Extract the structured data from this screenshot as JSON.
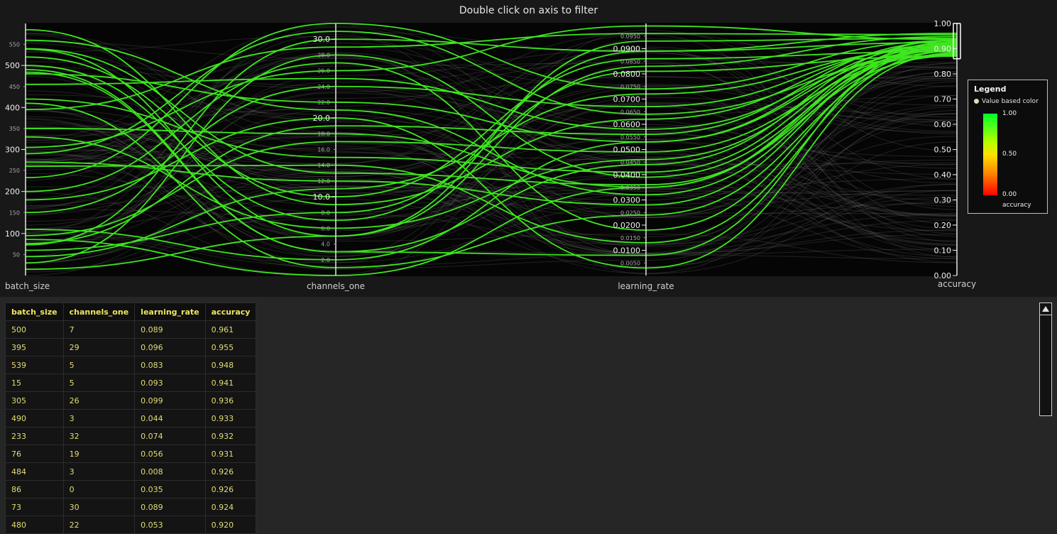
{
  "header": {
    "title": "Double click on axis to filter"
  },
  "chart_data": {
    "type": "parallel_coordinates",
    "axes": [
      {
        "name": "batch_size",
        "range": [
          0,
          600
        ],
        "major_ticks": [
          100,
          200,
          300,
          400,
          500
        ],
        "minor_ticks": [
          50,
          150,
          250,
          350,
          450,
          550
        ],
        "major_labels": [
          "100",
          "200",
          "300",
          "400",
          "500"
        ],
        "minor_labels": [
          "50",
          "150",
          "250",
          "350",
          "450",
          "550"
        ]
      },
      {
        "name": "channels_one",
        "range": [
          0,
          32
        ],
        "major_ticks": [
          10,
          20,
          30
        ],
        "minor_ticks": [
          2,
          4,
          6,
          8,
          12,
          14,
          16,
          18,
          22,
          24,
          26,
          28
        ],
        "major_labels": [
          "10.0",
          "20.0",
          "30.0"
        ],
        "minor_labels": [
          "2.0",
          "4.0",
          "6.0",
          "8.0",
          "12.0",
          "14.0",
          "16.0",
          "18.0",
          "22.0",
          "24.0",
          "26.0",
          "28.0"
        ]
      },
      {
        "name": "learning_rate",
        "range": [
          0,
          0.1
        ],
        "major_ticks": [
          0.01,
          0.02,
          0.03,
          0.04,
          0.05,
          0.06,
          0.07,
          0.08,
          0.09
        ],
        "minor_ticks": [
          0.005,
          0.015,
          0.025,
          0.035,
          0.045,
          0.055,
          0.065,
          0.075,
          0.085,
          0.095
        ],
        "major_labels": [
          "0.0100",
          "0.0200",
          "0.0300",
          "0.0400",
          "0.0500",
          "0.0600",
          "0.0700",
          "0.0800",
          "0.0900"
        ],
        "minor_labels": [
          "0.0050",
          "0.0150",
          "0.0250",
          "0.0350",
          "0.0450",
          "0.0550",
          "0.0650",
          "0.0750",
          "0.0850",
          "0.0950"
        ]
      },
      {
        "name": "accuracy",
        "range": [
          0,
          1
        ],
        "major_ticks": [
          0,
          0.1,
          0.2,
          0.3,
          0.4,
          0.5,
          0.6,
          0.7,
          0.8,
          0.9,
          1.0
        ],
        "minor_ticks": [],
        "major_labels": [
          "0.00",
          "0.10",
          "0.20",
          "0.30",
          "0.40",
          "0.50",
          "0.60",
          "0.70",
          "0.80",
          "0.90",
          "1.00"
        ],
        "minor_labels": [],
        "brush": [
          0.86,
          1.0
        ]
      }
    ],
    "highlighted_lines": [
      [
        500,
        7,
        0.089,
        0.961
      ],
      [
        395,
        29,
        0.096,
        0.955
      ],
      [
        539,
        5,
        0.083,
        0.948
      ],
      [
        15,
        5,
        0.093,
        0.941
      ],
      [
        305,
        26,
        0.099,
        0.936
      ],
      [
        490,
        3,
        0.044,
        0.933
      ],
      [
        233,
        32,
        0.074,
        0.932
      ],
      [
        76,
        19,
        0.056,
        0.931
      ],
      [
        484,
        3,
        0.008,
        0.926
      ],
      [
        86,
        0,
        0.035,
        0.926
      ],
      [
        73,
        30,
        0.089,
        0.924
      ],
      [
        480,
        22,
        0.053,
        0.92
      ],
      [
        585,
        9,
        0.062,
        0.918
      ],
      [
        420,
        15,
        0.041,
        0.915
      ],
      [
        270,
        12,
        0.028,
        0.912
      ],
      [
        150,
        24,
        0.067,
        0.91
      ],
      [
        350,
        18,
        0.035,
        0.907
      ],
      [
        200,
        27,
        0.018,
        0.905
      ],
      [
        45,
        11,
        0.072,
        0.902
      ],
      [
        560,
        21,
        0.032,
        0.9
      ],
      [
        110,
        2,
        0.053,
        0.898
      ],
      [
        330,
        6,
        0.046,
        0.896
      ],
      [
        455,
        25,
        0.058,
        0.894
      ],
      [
        260,
        14,
        0.013,
        0.892
      ],
      [
        30,
        28,
        0.039,
        0.89
      ],
      [
        520,
        10,
        0.086,
        0.888
      ],
      [
        180,
        20,
        0.003,
        0.884
      ],
      [
        410,
        1,
        0.024,
        0.88
      ],
      [
        95,
        17,
        0.049,
        0.878
      ],
      [
        290,
        31,
        0.064,
        0.875
      ],
      [
        540,
        13,
        0.036,
        0.872
      ],
      [
        60,
        8,
        0.081,
        0.87
      ]
    ],
    "background_line_count": 90,
    "legend": {
      "title": "Legend",
      "item": "Value based color",
      "max_label": "1.00",
      "mid_label": "0.50",
      "min_label": "0.00",
      "variable": "accuracy",
      "colors": [
        "#00ff2a",
        "#ffe100",
        "#ff0000"
      ]
    },
    "colors": {
      "highlight": "#3ee61f",
      "background_line": "#8a8a8a",
      "axis": "#e6e6e6"
    }
  },
  "table": {
    "columns": [
      "batch_size",
      "channels_one",
      "learning_rate",
      "accuracy"
    ],
    "rows": [
      [
        "500",
        "7",
        "0.089",
        "0.961"
      ],
      [
        "395",
        "29",
        "0.096",
        "0.955"
      ],
      [
        "539",
        "5",
        "0.083",
        "0.948"
      ],
      [
        "15",
        "5",
        "0.093",
        "0.941"
      ],
      [
        "305",
        "26",
        "0.099",
        "0.936"
      ],
      [
        "490",
        "3",
        "0.044",
        "0.933"
      ],
      [
        "233",
        "32",
        "0.074",
        "0.932"
      ],
      [
        "76",
        "19",
        "0.056",
        "0.931"
      ],
      [
        "484",
        "3",
        "0.008",
        "0.926"
      ],
      [
        "86",
        "0",
        "0.035",
        "0.926"
      ],
      [
        "73",
        "30",
        "0.089",
        "0.924"
      ],
      [
        "480",
        "22",
        "0.053",
        "0.920"
      ]
    ]
  }
}
